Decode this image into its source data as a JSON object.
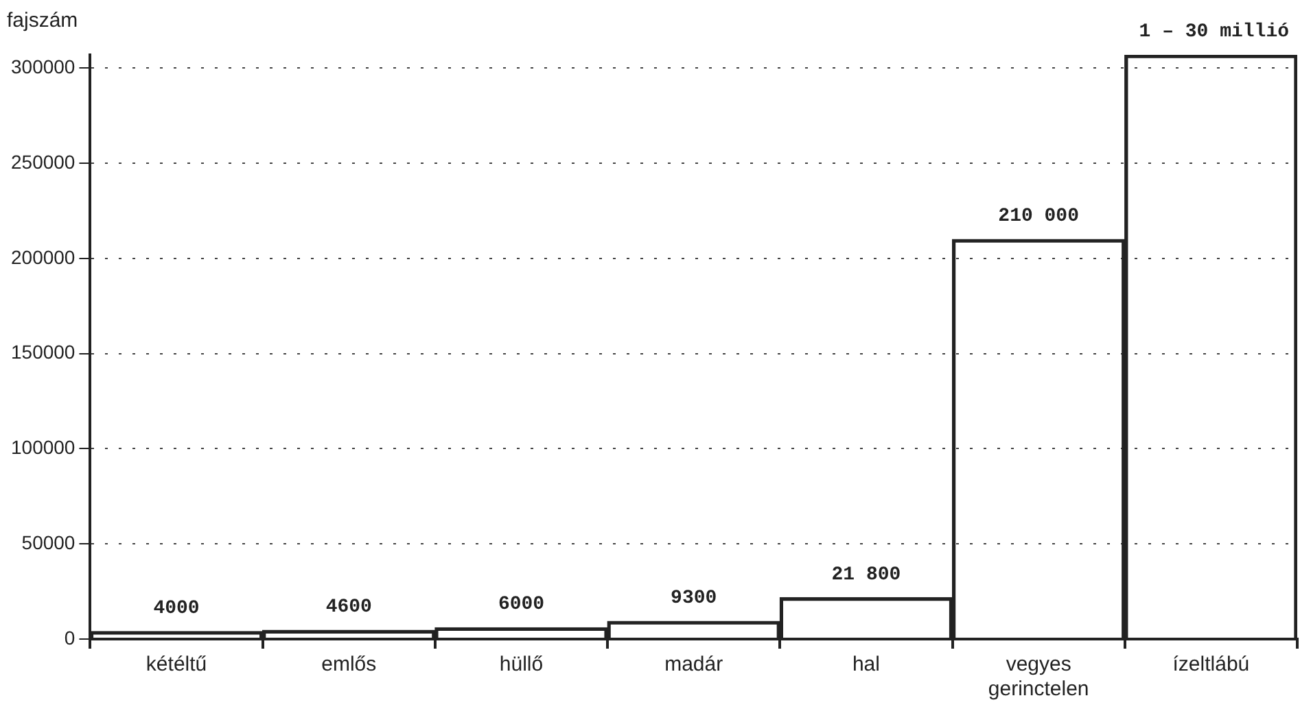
{
  "chart_data": {
    "type": "bar",
    "ylabel": "fajszám",
    "categories": [
      "kétéltű",
      "emlős",
      "hüllő",
      "madár",
      "hal",
      "vegyes gerinctelen",
      "ízeltlábú"
    ],
    "values": [
      4000,
      4600,
      6000,
      9300,
      21800,
      210000,
      307000
    ],
    "value_labels": [
      "4000",
      "4600",
      "6000",
      "9300",
      "21 800",
      "210 000",
      null
    ],
    "annotations": [
      "1 – 30 millió"
    ],
    "color": "#222222",
    "ylim": [
      0,
      307000
    ],
    "yticks": [
      0,
      50000,
      100000,
      150000,
      200000,
      250000,
      300000
    ],
    "grid": "y",
    "legend": false
  }
}
